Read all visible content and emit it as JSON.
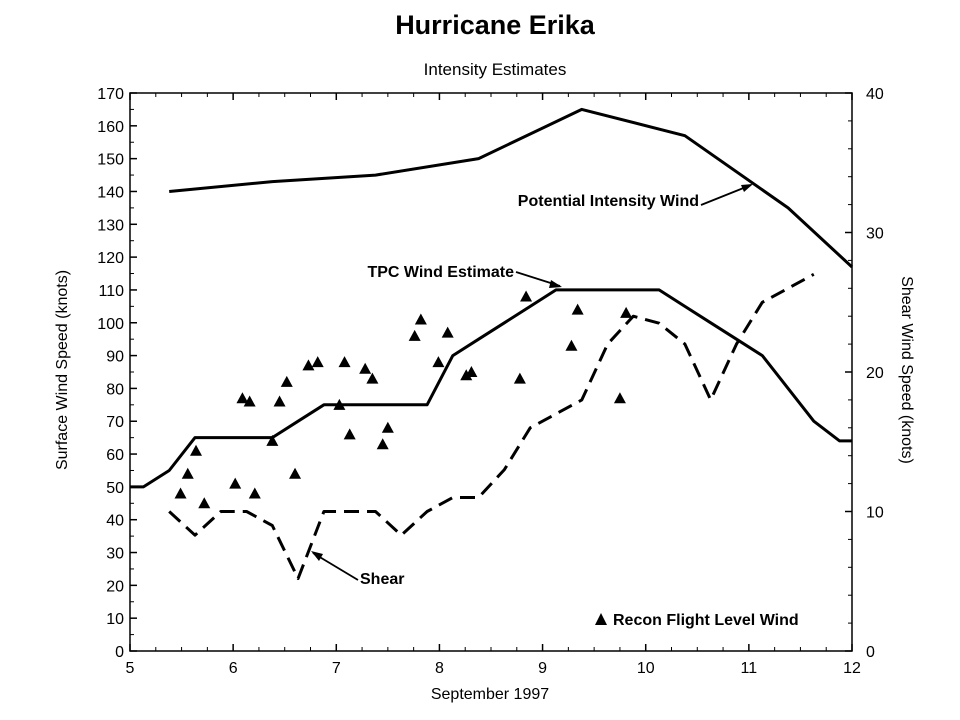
{
  "chart_data": {
    "type": "line",
    "title": "Hurricane Erika",
    "subtitle": "Intensity Estimates",
    "xlabel": "September 1997",
    "ylabel": "Surface Wind Speed (knots)",
    "y2label": "Shear Wind Speed (knots)",
    "xlim": [
      5,
      12
    ],
    "ylim": [
      0,
      170
    ],
    "y2lim": [
      0,
      40
    ],
    "x_ticks": [
      "5",
      "6",
      "7",
      "8",
      "9",
      "10",
      "11",
      "12"
    ],
    "y_ticks": [
      "0",
      "10",
      "20",
      "30",
      "40",
      "50",
      "60",
      "70",
      "80",
      "90",
      "100",
      "110",
      "120",
      "130",
      "140",
      "150",
      "160",
      "170"
    ],
    "y2_ticks": [
      "0",
      "10",
      "20",
      "30",
      "40"
    ],
    "grid": false,
    "series": [
      {
        "name": "Potential Intensity Wind",
        "axis": "left",
        "style": "solid",
        "x": [
          5.38,
          6.38,
          7.38,
          8.38,
          9.38,
          10.38,
          11.38,
          12.0
        ],
        "y": [
          140,
          143,
          145,
          150,
          165,
          157,
          135,
          117
        ]
      },
      {
        "name": "TPC Wind Estimate",
        "axis": "left",
        "style": "solid",
        "x": [
          5.0,
          5.13,
          5.38,
          5.63,
          5.88,
          6.13,
          6.38,
          6.63,
          6.88,
          7.13,
          7.38,
          7.63,
          7.88,
          8.13,
          8.38,
          8.63,
          8.88,
          9.13,
          9.38,
          9.63,
          9.88,
          10.13,
          10.38,
          10.63,
          10.88,
          11.13,
          11.38,
          11.63,
          11.88,
          12.0
        ],
        "y": [
          50,
          50,
          55,
          65,
          65,
          65,
          65,
          70,
          75,
          75,
          75,
          75,
          75,
          90,
          95,
          100,
          105,
          110,
          110,
          110,
          110,
          110,
          105,
          100,
          95,
          90,
          80,
          70,
          64,
          64
        ]
      },
      {
        "name": "Shear",
        "axis": "right",
        "style": "dashed",
        "x": [
          5.38,
          5.63,
          5.88,
          6.13,
          6.38,
          6.63,
          6.88,
          7.13,
          7.38,
          7.63,
          7.88,
          8.13,
          8.38,
          8.63,
          8.88,
          9.13,
          9.38,
          9.63,
          9.88,
          10.13,
          10.38,
          10.63,
          10.88,
          11.13,
          11.38,
          11.63
        ],
        "y": [
          10.0,
          8.3,
          10.0,
          10.0,
          9.0,
          5.2,
          10.0,
          10.0,
          10.0,
          8.3,
          10.0,
          11.0,
          11.0,
          13.0,
          16.0,
          17.0,
          18.0,
          22.0,
          24.0,
          23.5,
          22.0,
          18.0,
          22.0,
          25.0,
          26.0,
          27.0
        ]
      },
      {
        "name": "Recon Flight Level Wind",
        "axis": "left",
        "style": "markers",
        "x": [
          5.49,
          5.56,
          5.64,
          5.72,
          6.02,
          6.09,
          6.16,
          6.21,
          6.38,
          6.45,
          6.52,
          6.6,
          6.73,
          6.82,
          7.03,
          7.08,
          7.13,
          7.28,
          7.35,
          7.45,
          7.5,
          7.76,
          7.82,
          7.99,
          8.08,
          8.26,
          8.31,
          8.78,
          8.84,
          9.28,
          9.34,
          9.75,
          9.81
        ],
        "y": [
          48,
          54,
          61,
          45,
          51,
          77,
          76,
          48,
          64,
          76,
          82,
          54,
          87,
          88,
          75,
          88,
          66,
          86,
          83,
          63,
          68,
          96,
          101,
          88,
          97,
          84,
          85,
          83,
          108,
          93,
          104,
          77,
          103
        ]
      }
    ],
    "annotations": [
      "Potential Intensity Wind",
      "TPC Wind Estimate",
      "Shear"
    ],
    "legend": {
      "placement": "bottom-right",
      "entries": [
        "Recon Flight Level Wind"
      ]
    }
  }
}
